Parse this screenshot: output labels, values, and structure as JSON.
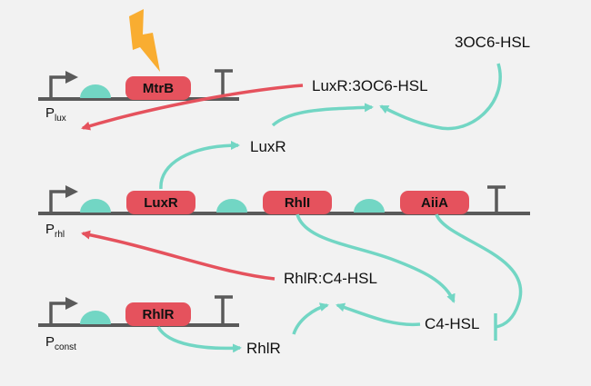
{
  "colors": {
    "background": "#f2f2f2",
    "dna": "#5a5a5a",
    "gene": "#e5525d",
    "rbs": "#72d6c4",
    "activation_arrow": "#e5525d",
    "production_arrow": "#72d6c4",
    "lightning": "#f9ad31"
  },
  "icons": [
    "promoter-arrow-icon",
    "rbs-icon",
    "terminator-icon",
    "lightning-bolt-icon"
  ],
  "genes": {
    "mtrB": "MtrB",
    "luxR": "LuxR",
    "rhlI": "RhlI",
    "aiiA": "AiiA",
    "rhlR": "RhlR"
  },
  "promoters": {
    "lux": {
      "prefix": "P",
      "subscript": "lux"
    },
    "rhl": {
      "prefix": "P",
      "subscript": "rhl"
    },
    "const": {
      "prefix": "P",
      "subscript": "const"
    }
  },
  "species": {
    "ahl_3oc6": "3OC6-HSL",
    "luxr_complex": "LuxR:3OC6-HSL",
    "luxr": "LuxR",
    "rhlr_complex": "RhlR:C4-HSL",
    "c4": "C4-HSL",
    "rhlr": "RhlR"
  }
}
